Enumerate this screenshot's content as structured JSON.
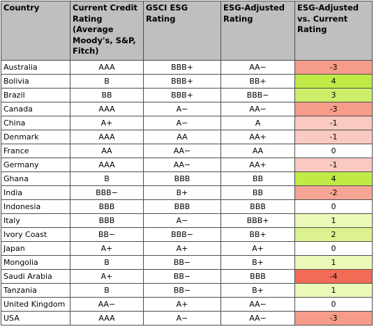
{
  "table": {
    "headers": [
      "Country",
      "Current Credit Rating (Average Moody's, S&P, Fitch)",
      "GSCI ESG Rating",
      "ESG-Adjusted Rating",
      "ESG-Adjusted vs. Current Rating"
    ],
    "diff_colors": {
      "-4": "#f26b57",
      "-3": "#f59c8b",
      "-2": "#f6a595",
      "-1": "#fac9c1",
      "0": "#ffffff",
      "1": "#eaf8b8",
      "2": "#dbf28e",
      "3": "#ccee69",
      "4": "#c0ea45"
    },
    "rows": [
      {
        "country": "Australia",
        "current": "AAA",
        "esg": "BBB+",
        "adjusted": "AA−",
        "diff": "-3"
      },
      {
        "country": "Bolivia",
        "current": "B",
        "esg": "BBB+",
        "adjusted": "BB+",
        "diff": "4"
      },
      {
        "country": "Brazil",
        "current": "BB",
        "esg": "BBB+",
        "adjusted": "BBB−",
        "diff": "3"
      },
      {
        "country": "Canada",
        "current": "AAA",
        "esg": "A−",
        "adjusted": "AA−",
        "diff": "-3"
      },
      {
        "country": "China",
        "current": "A+",
        "esg": "A−",
        "adjusted": "A",
        "diff": "-1"
      },
      {
        "country": "Denmark",
        "current": "AAA",
        "esg": "AA",
        "adjusted": "AA+",
        "diff": "-1"
      },
      {
        "country": "France",
        "current": "AA",
        "esg": "AA−",
        "adjusted": "AA",
        "diff": "0"
      },
      {
        "country": "Germany",
        "current": "AAA",
        "esg": "AA−",
        "adjusted": "AA+",
        "diff": "-1"
      },
      {
        "country": "Ghana",
        "current": "B",
        "esg": "BBB",
        "adjusted": "BB",
        "diff": "4"
      },
      {
        "country": "India",
        "current": "BBB−",
        "esg": "B+",
        "adjusted": "BB",
        "diff": "-2"
      },
      {
        "country": "Indonesia",
        "current": "BBB",
        "esg": "BBB",
        "adjusted": "BBB",
        "diff": "0"
      },
      {
        "country": "Italy",
        "current": "BBB",
        "esg": "A−",
        "adjusted": "BBB+",
        "diff": "1"
      },
      {
        "country": "Ivory Coast",
        "current": "BB−",
        "esg": "BBB−",
        "adjusted": "BB+",
        "diff": "2"
      },
      {
        "country": "Japan",
        "current": "A+",
        "esg": "A+",
        "adjusted": "A+",
        "diff": "0"
      },
      {
        "country": "Mongolia",
        "current": "B",
        "esg": "BB−",
        "adjusted": "B+",
        "diff": "1"
      },
      {
        "country": "Saudi Arabia",
        "current": "A+",
        "esg": "BB−",
        "adjusted": "BBB",
        "diff": "-4"
      },
      {
        "country": "Tanzania",
        "current": "B",
        "esg": "BB−",
        "adjusted": "B+",
        "diff": "1"
      },
      {
        "country": "United Kingdom",
        "current": "AA−",
        "esg": "A+",
        "adjusted": "AA−",
        "diff": "0"
      },
      {
        "country": "USA",
        "current": "AAA",
        "esg": "A−",
        "adjusted": "AA−",
        "diff": "-3"
      }
    ]
  }
}
